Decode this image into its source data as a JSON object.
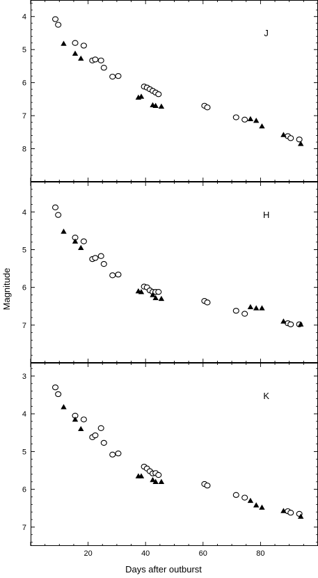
{
  "chart_data": {
    "type": "scatter",
    "xlabel": "Days after outburst",
    "ylabel": "Magnitude",
    "xlim": [
      0,
      100
    ],
    "x_ticks": [
      20,
      40,
      60,
      80
    ],
    "marker_colors": {
      "open_circle": "#000000",
      "filled_triangle": "#000000"
    },
    "panels": [
      {
        "label": "J",
        "ylim": [
          9.0,
          3.5
        ],
        "y_inverted": true,
        "y_ticks": [
          4,
          5,
          6,
          7,
          8
        ],
        "series": [
          {
            "marker": "open-circle",
            "x": [
              8.6,
              9.6,
              15.5,
              18.5,
              21.5,
              22.5,
              24.5,
              25.5,
              28.5,
              30.5,
              39.5,
              40.5,
              41.5,
              42.5,
              43.5,
              44.5,
              60.5,
              61.5,
              71.5,
              74.5,
              89.5,
              90.5,
              93.5
            ],
            "y": [
              4.08,
              4.25,
              4.8,
              4.88,
              5.33,
              5.3,
              5.33,
              5.55,
              5.82,
              5.8,
              6.12,
              6.15,
              6.2,
              6.25,
              6.3,
              6.35,
              6.7,
              6.75,
              7.05,
              7.12,
              7.62,
              7.68,
              7.72
            ]
          },
          {
            "marker": "filled-triangle",
            "x": [
              11.5,
              15.5,
              17.5,
              37.5,
              38.5,
              42.5,
              43.5,
              45.5,
              76.5,
              78.5,
              80.5,
              88.0,
              94.0
            ],
            "y": [
              4.82,
              5.12,
              5.27,
              6.45,
              6.42,
              6.68,
              6.7,
              6.72,
              7.1,
              7.15,
              7.32,
              7.58,
              7.85
            ]
          }
        ]
      },
      {
        "label": "H",
        "ylim": [
          8.0,
          3.2
        ],
        "y_inverted": true,
        "y_ticks": [
          4,
          5,
          6,
          7
        ],
        "series": [
          {
            "marker": "open-circle",
            "x": [
              8.6,
              9.6,
              15.5,
              18.5,
              21.5,
              22.5,
              24.5,
              25.5,
              28.5,
              30.5,
              39.5,
              40.5,
              41.5,
              42.5,
              43.5,
              44.5,
              60.5,
              61.5,
              71.5,
              74.5,
              89.5,
              90.5,
              93.5
            ],
            "y": [
              3.88,
              4.08,
              4.68,
              4.78,
              5.25,
              5.22,
              5.17,
              5.38,
              5.68,
              5.66,
              5.98,
              6.0,
              6.08,
              6.12,
              6.12,
              6.12,
              6.36,
              6.4,
              6.62,
              6.7,
              6.95,
              6.98,
              6.98
            ]
          },
          {
            "marker": "filled-triangle",
            "x": [
              11.5,
              15.5,
              17.5,
              37.5,
              38.5,
              42.5,
              43.5,
              45.5,
              76.5,
              78.5,
              80.5,
              88.0,
              94.0
            ],
            "y": [
              4.52,
              4.78,
              4.95,
              6.1,
              6.12,
              6.2,
              6.28,
              6.3,
              6.52,
              6.55,
              6.55,
              6.9,
              6.98
            ]
          }
        ]
      },
      {
        "label": "K",
        "ylim": [
          7.5,
          2.65
        ],
        "y_inverted": true,
        "y_ticks": [
          3,
          4,
          5,
          6,
          7
        ],
        "series": [
          {
            "marker": "open-circle",
            "x": [
              8.6,
              9.6,
              15.5,
              18.5,
              21.5,
              22.5,
              24.5,
              25.5,
              28.5,
              30.5,
              39.5,
              40.5,
              41.5,
              42.5,
              43.5,
              44.5,
              60.5,
              61.5,
              71.5,
              74.5,
              89.5,
              90.5,
              93.5
            ],
            "y": [
              3.3,
              3.48,
              4.05,
              4.15,
              4.62,
              4.57,
              4.38,
              4.77,
              5.08,
              5.05,
              5.4,
              5.45,
              5.52,
              5.58,
              5.57,
              5.62,
              5.86,
              5.9,
              6.15,
              6.22,
              6.58,
              6.62,
              6.65
            ]
          },
          {
            "marker": "filled-triangle",
            "x": [
              11.5,
              15.5,
              17.5,
              37.5,
              38.5,
              42.5,
              43.5,
              45.5,
              76.5,
              78.5,
              80.5,
              88.0,
              94.0
            ],
            "y": [
              3.82,
              4.15,
              4.4,
              5.65,
              5.65,
              5.75,
              5.8,
              5.8,
              6.3,
              6.42,
              6.48,
              6.57,
              6.72
            ]
          }
        ]
      }
    ]
  }
}
